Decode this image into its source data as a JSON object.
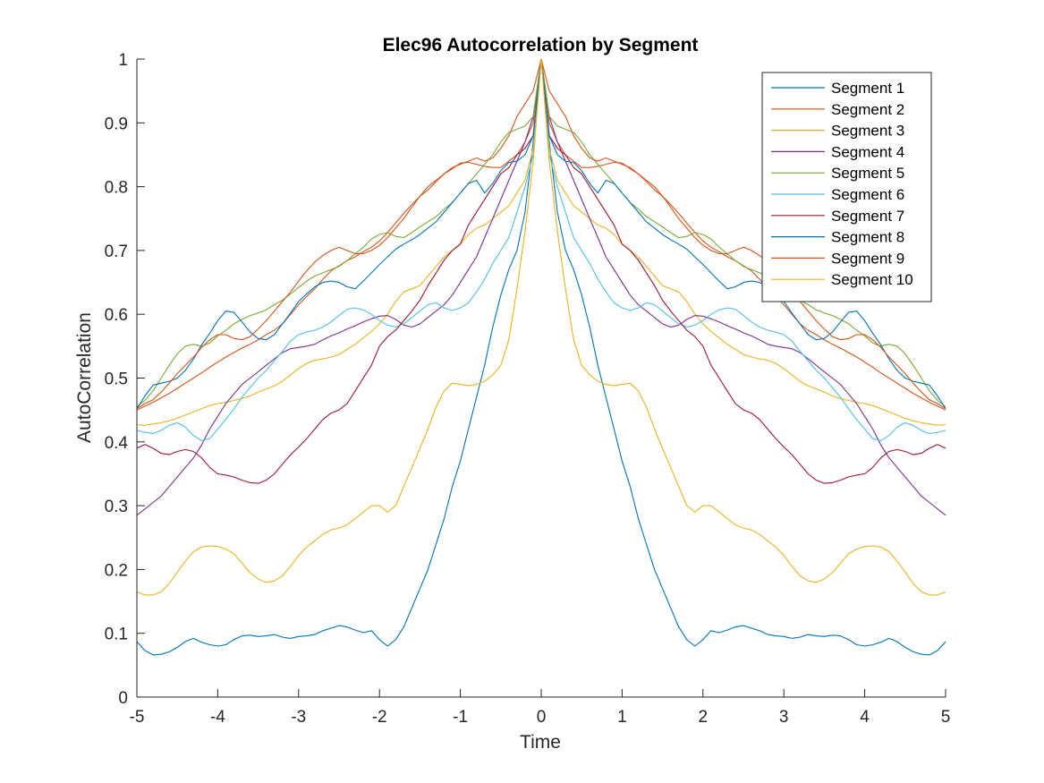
{
  "chart_data": {
    "type": "line",
    "title": "Elec96 Autocorrelation by Segment",
    "xlabel": "Time",
    "ylabel": "AutoCorrelation",
    "xlim": [
      -5,
      5
    ],
    "ylim": [
      0,
      1
    ],
    "xticks": [
      -5,
      -4,
      -3,
      -2,
      -1,
      0,
      1,
      2,
      3,
      4,
      5
    ],
    "xtick_labels": [
      "-5",
      "-4",
      "-3",
      "-2",
      "-1",
      "0",
      "1",
      "2",
      "3",
      "4",
      "5"
    ],
    "yticks": [
      0,
      0.1,
      0.2,
      0.3,
      0.4,
      0.5,
      0.6,
      0.7,
      0.8,
      0.9,
      1
    ],
    "ytick_labels": [
      "0",
      "0.1",
      "0.2",
      "0.3",
      "0.4",
      "0.5",
      "0.6",
      "0.7",
      "0.8",
      "0.9",
      "1"
    ],
    "grid": false,
    "legend_position": "top-right",
    "symmetric": true,
    "x": [
      0,
      0.1,
      0.2,
      0.3,
      0.4,
      0.5,
      0.6,
      0.7,
      0.8,
      0.9,
      1.0,
      1.1,
      1.2,
      1.3,
      1.4,
      1.5,
      1.6,
      1.7,
      1.8,
      1.9,
      2.0,
      2.1,
      2.2,
      2.3,
      2.4,
      2.5,
      2.6,
      2.7,
      2.8,
      2.9,
      3.0,
      3.1,
      3.2,
      3.3,
      3.4,
      3.5,
      3.6,
      3.7,
      3.8,
      3.9,
      4.0,
      4.1,
      4.2,
      4.3,
      4.4,
      4.5,
      4.6,
      4.7,
      4.8,
      4.9,
      5.0
    ],
    "series": [
      {
        "name": "Segment 1",
        "color": "#0072BD",
        "values": [
          1.0,
          0.87,
          0.76,
          0.7,
          0.67,
          0.63,
          0.58,
          0.52,
          0.47,
          0.42,
          0.37,
          0.33,
          0.28,
          0.24,
          0.2,
          0.17,
          0.14,
          0.11,
          0.09,
          0.08,
          0.09,
          0.104,
          0.101,
          0.105,
          0.11,
          0.112,
          0.108,
          0.104,
          0.098,
          0.096,
          0.095,
          0.092,
          0.094,
          0.098,
          0.096,
          0.095,
          0.097,
          0.096,
          0.09,
          0.082,
          0.08,
          0.082,
          0.086,
          0.092,
          0.087,
          0.078,
          0.071,
          0.067,
          0.066,
          0.073,
          0.087
        ]
      },
      {
        "name": "Segment 2",
        "color": "#D95319",
        "values": [
          1.0,
          0.9,
          0.87,
          0.85,
          0.84,
          0.83,
          0.83,
          0.832,
          0.835,
          0.838,
          0.837,
          0.828,
          0.82,
          0.808,
          0.795,
          0.785,
          0.772,
          0.758,
          0.743,
          0.728,
          0.715,
          0.705,
          0.698,
          0.69,
          0.684,
          0.676,
          0.668,
          0.655,
          0.64,
          0.628,
          0.615,
          0.6,
          0.585,
          0.575,
          0.568,
          0.56,
          0.553,
          0.547,
          0.54,
          0.533,
          0.525,
          0.517,
          0.508,
          0.5,
          0.492,
          0.484,
          0.476,
          0.469,
          0.462,
          0.456,
          0.45
        ]
      },
      {
        "name": "Segment 3",
        "color": "#EDB120",
        "values": [
          1.0,
          0.86,
          0.81,
          0.79,
          0.77,
          0.76,
          0.75,
          0.74,
          0.735,
          0.725,
          0.71,
          0.7,
          0.69,
          0.675,
          0.66,
          0.645,
          0.64,
          0.635,
          0.62,
          0.6,
          0.585,
          0.573,
          0.563,
          0.553,
          0.545,
          0.537,
          0.533,
          0.53,
          0.528,
          0.523,
          0.515,
          0.505,
          0.495,
          0.488,
          0.483,
          0.478,
          0.472,
          0.468,
          0.465,
          0.462,
          0.46,
          0.457,
          0.452,
          0.447,
          0.442,
          0.437,
          0.433,
          0.43,
          0.428,
          0.426,
          0.427
        ]
      },
      {
        "name": "Segment 4",
        "color": "#7E2F8E",
        "values": [
          1.0,
          0.91,
          0.87,
          0.84,
          0.81,
          0.78,
          0.75,
          0.72,
          0.69,
          0.67,
          0.65,
          0.63,
          0.615,
          0.605,
          0.595,
          0.585,
          0.58,
          0.583,
          0.592,
          0.598,
          0.597,
          0.593,
          0.588,
          0.582,
          0.577,
          0.571,
          0.566,
          0.56,
          0.553,
          0.55,
          0.548,
          0.546,
          0.54,
          0.53,
          0.52,
          0.51,
          0.5,
          0.49,
          0.475,
          0.46,
          0.44,
          0.42,
          0.395,
          0.375,
          0.36,
          0.345,
          0.33,
          0.315,
          0.305,
          0.295,
          0.285
        ]
      },
      {
        "name": "Segment 5",
        "color": "#77AC30",
        "values": [
          1.0,
          0.91,
          0.895,
          0.89,
          0.885,
          0.87,
          0.85,
          0.835,
          0.82,
          0.805,
          0.79,
          0.775,
          0.765,
          0.753,
          0.745,
          0.737,
          0.728,
          0.72,
          0.722,
          0.728,
          0.725,
          0.718,
          0.705,
          0.695,
          0.684,
          0.675,
          0.67,
          0.665,
          0.66,
          0.652,
          0.642,
          0.632,
          0.622,
          0.615,
          0.607,
          0.602,
          0.598,
          0.592,
          0.585,
          0.575,
          0.566,
          0.555,
          0.55,
          0.553,
          0.55,
          0.538,
          0.52,
          0.5,
          0.48,
          0.465,
          0.455
        ]
      },
      {
        "name": "Segment 6",
        "color": "#4DBEEE",
        "values": [
          1.0,
          0.85,
          0.8,
          0.76,
          0.72,
          0.7,
          0.68,
          0.655,
          0.635,
          0.618,
          0.61,
          0.606,
          0.61,
          0.618,
          0.615,
          0.605,
          0.595,
          0.585,
          0.58,
          0.583,
          0.59,
          0.6,
          0.607,
          0.61,
          0.608,
          0.598,
          0.588,
          0.58,
          0.575,
          0.572,
          0.568,
          0.558,
          0.542,
          0.527,
          0.512,
          0.5,
          0.485,
          0.47,
          0.452,
          0.435,
          0.42,
          0.405,
          0.402,
          0.41,
          0.423,
          0.43,
          0.426,
          0.418,
          0.413,
          0.415,
          0.418
        ]
      },
      {
        "name": "Segment 7",
        "color": "#A2142F",
        "values": [
          1.0,
          0.88,
          0.86,
          0.85,
          0.83,
          0.82,
          0.8,
          0.78,
          0.76,
          0.74,
          0.71,
          0.7,
          0.685,
          0.665,
          0.645,
          0.622,
          0.605,
          0.59,
          0.575,
          0.565,
          0.55,
          0.52,
          0.5,
          0.48,
          0.46,
          0.45,
          0.445,
          0.435,
          0.42,
          0.405,
          0.392,
          0.38,
          0.365,
          0.35,
          0.34,
          0.335,
          0.336,
          0.34,
          0.345,
          0.348,
          0.35,
          0.36,
          0.375,
          0.385,
          0.388,
          0.385,
          0.38,
          0.382,
          0.39,
          0.396,
          0.39
        ]
      },
      {
        "name": "Segment 8",
        "color": "#0072BD",
        "values": [
          1.0,
          0.88,
          0.85,
          0.84,
          0.838,
          0.825,
          0.805,
          0.79,
          0.81,
          0.805,
          0.79,
          0.775,
          0.76,
          0.745,
          0.735,
          0.725,
          0.717,
          0.71,
          0.702,
          0.69,
          0.678,
          0.665,
          0.652,
          0.64,
          0.643,
          0.65,
          0.652,
          0.65,
          0.643,
          0.632,
          0.62,
          0.602,
          0.585,
          0.568,
          0.56,
          0.562,
          0.572,
          0.588,
          0.603,
          0.605,
          0.59,
          0.57,
          0.552,
          0.53,
          0.512,
          0.5,
          0.495,
          0.492,
          0.489,
          0.472,
          0.452
        ]
      },
      {
        "name": "Segment 9",
        "color": "#D95319",
        "values": [
          1.0,
          0.95,
          0.93,
          0.91,
          0.88,
          0.86,
          0.845,
          0.84,
          0.845,
          0.84,
          0.835,
          0.83,
          0.82,
          0.81,
          0.8,
          0.785,
          0.768,
          0.75,
          0.735,
          0.72,
          0.708,
          0.7,
          0.695,
          0.695,
          0.7,
          0.705,
          0.7,
          0.692,
          0.682,
          0.668,
          0.652,
          0.635,
          0.62,
          0.605,
          0.59,
          0.577,
          0.565,
          0.56,
          0.562,
          0.568,
          0.568,
          0.56,
          0.548,
          0.533,
          0.52,
          0.507,
          0.492,
          0.478,
          0.466,
          0.46,
          0.452
        ]
      },
      {
        "name": "Segment 10",
        "color": "#EDB120",
        "values": [
          1.0,
          0.84,
          0.73,
          0.64,
          0.56,
          0.52,
          0.505,
          0.495,
          0.49,
          0.488,
          0.49,
          0.492,
          0.48,
          0.455,
          0.42,
          0.39,
          0.36,
          0.33,
          0.3,
          0.29,
          0.3,
          0.3,
          0.29,
          0.28,
          0.27,
          0.265,
          0.262,
          0.255,
          0.245,
          0.235,
          0.222,
          0.205,
          0.19,
          0.182,
          0.18,
          0.185,
          0.195,
          0.21,
          0.225,
          0.232,
          0.236,
          0.237,
          0.235,
          0.228,
          0.213,
          0.196,
          0.178,
          0.165,
          0.16,
          0.16,
          0.165
        ]
      }
    ]
  }
}
